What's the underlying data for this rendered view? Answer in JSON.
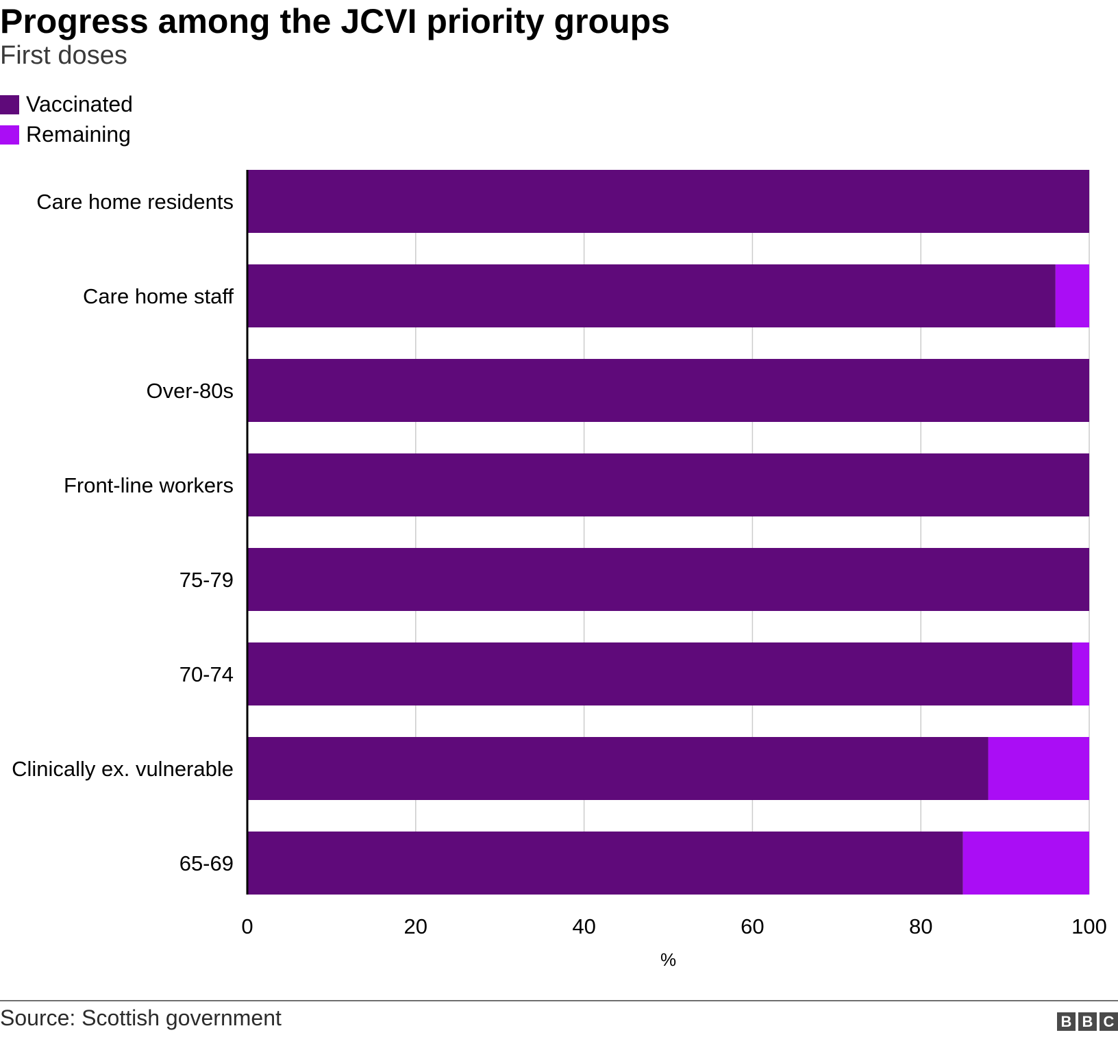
{
  "header": {
    "title": "Progress among the JCVI priority groups",
    "subtitle": "First doses"
  },
  "legend": {
    "vaccinated": "Vaccinated",
    "remaining": "Remaining"
  },
  "colors": {
    "vaccinated": "#5f0a7a",
    "remaining": "#aa0df5",
    "grid": "#cccccc",
    "axis": "#000000"
  },
  "chart_data": {
    "type": "bar",
    "orientation": "horizontal",
    "stacked": true,
    "title": "Progress among the JCVI priority groups",
    "subtitle": "First doses",
    "categories": [
      "Care home residents",
      "Care home staff",
      "Over-80s",
      "Front-line workers",
      "75-79",
      "70-74",
      "Clinically ex. vulnerable",
      "65-69"
    ],
    "series": [
      {
        "name": "Vaccinated",
        "values": [
          100,
          96,
          100,
          100,
          100,
          98,
          88,
          85
        ]
      },
      {
        "name": "Remaining",
        "values": [
          0,
          4,
          0,
          0,
          0,
          2,
          12,
          15
        ]
      }
    ],
    "xlabel": "%",
    "ylabel": "",
    "xlim": [
      0,
      100
    ],
    "xticks": [
      "0",
      "20",
      "40",
      "60",
      "80",
      "100"
    ],
    "grid": true,
    "legend_position": "top-left"
  },
  "footer": {
    "source": "Source: Scottish government",
    "logo_letters": [
      "B",
      "B",
      "C"
    ]
  }
}
